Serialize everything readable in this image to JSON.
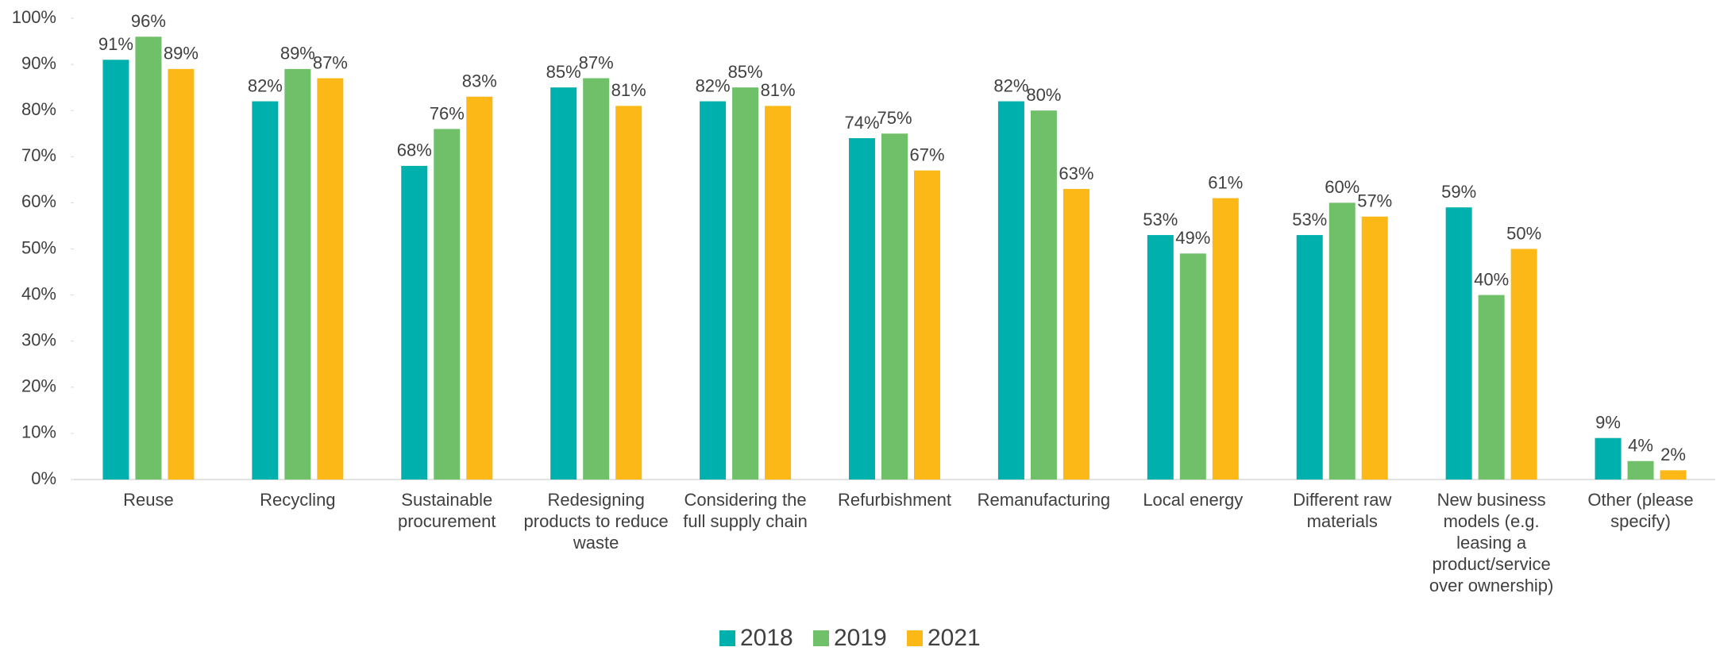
{
  "chart_data": {
    "type": "bar",
    "categories": [
      "Reuse",
      "Recycling",
      "Sustainable procurement",
      "Redesigning products to reduce waste",
      "Considering the full supply chain",
      "Refurbishment",
      "Remanufacturing",
      "Local energy",
      "Different raw materials",
      "New business models (e.g. leasing a product/service over ownership)",
      "Other (please specify)"
    ],
    "series": [
      {
        "name": "2018",
        "color": "#00b0ac",
        "values": [
          91,
          82,
          68,
          85,
          82,
          74,
          82,
          53,
          53,
          59,
          9
        ],
        "value_labels": [
          "91%",
          "82%",
          "68%",
          "85%",
          "82%",
          "74%",
          "82%",
          "53%",
          "53%",
          "59%",
          "9%"
        ]
      },
      {
        "name": "2019",
        "color": "#70bf69",
        "values": [
          96,
          89,
          76,
          87,
          85,
          75,
          80,
          49,
          60,
          40,
          4
        ],
        "value_labels": [
          "96%",
          "89%",
          "76%",
          "87%",
          "85%",
          "75%",
          "80%",
          "49%",
          "60%",
          "40%",
          "4%"
        ]
      },
      {
        "name": "2021",
        "color": "#fbb816",
        "values": [
          89,
          87,
          83,
          81,
          81,
          67,
          63,
          61,
          57,
          50,
          2
        ],
        "value_labels": [
          "89%",
          "87%",
          "83%",
          "81%",
          "81%",
          "67%",
          "63%",
          "61%",
          "57%",
          "50%",
          "2%"
        ]
      }
    ],
    "ylim": [
      0,
      100
    ],
    "yticks": [
      {
        "value": 0,
        "label": "0%"
      },
      {
        "value": 10,
        "label": "10%"
      },
      {
        "value": 20,
        "label": "20%"
      },
      {
        "value": 30,
        "label": "30%"
      },
      {
        "value": 40,
        "label": "40%"
      },
      {
        "value": 50,
        "label": "50%"
      },
      {
        "value": 60,
        "label": "60%"
      },
      {
        "value": 70,
        "label": "70%"
      },
      {
        "value": 80,
        "label": "80%"
      },
      {
        "value": 90,
        "label": "90%"
      },
      {
        "value": 100,
        "label": "100%"
      }
    ],
    "grid": false,
    "legend": "bottom"
  }
}
